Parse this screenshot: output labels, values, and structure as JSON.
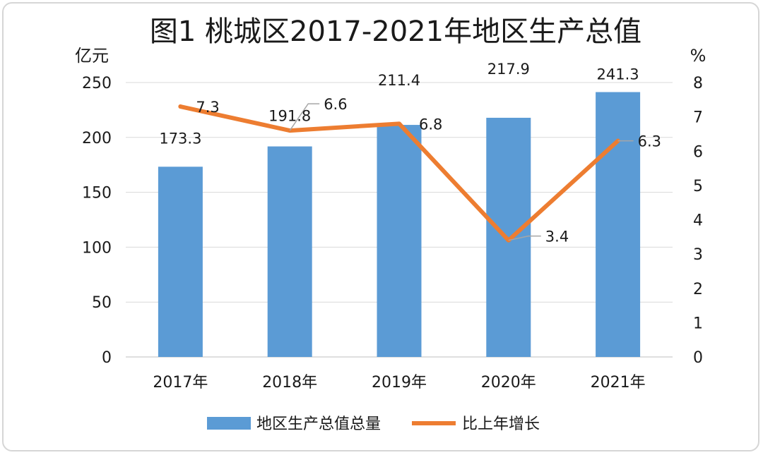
{
  "chart_data": {
    "type": "bar",
    "title": "图1  桃城区2017-2021年地区生产总值",
    "categories": [
      "2017年",
      "2018年",
      "2019年",
      "2020年",
      "2021年"
    ],
    "series": [
      {
        "name": "地区生产总值总量",
        "type": "bar",
        "axis": "left",
        "values": [
          173.3,
          191.8,
          211.4,
          217.9,
          241.3
        ],
        "color": "#5b9bd5"
      },
      {
        "name": "比上年增长",
        "type": "line",
        "axis": "right",
        "values": [
          7.3,
          6.6,
          6.8,
          3.4,
          6.3
        ],
        "color": "#ed7d31"
      }
    ],
    "ylabel_left": "亿元",
    "ylabel_right": "%",
    "ylim_left": [
      0,
      250
    ],
    "ylim_right": [
      0,
      8
    ],
    "yticks_left": [
      "0",
      "50",
      "100",
      "150",
      "200",
      "250"
    ],
    "yticks_right": [
      "0",
      "1",
      "2",
      "3",
      "4",
      "5",
      "6",
      "7",
      "8"
    ],
    "grid": true,
    "legend_position": "bottom"
  }
}
